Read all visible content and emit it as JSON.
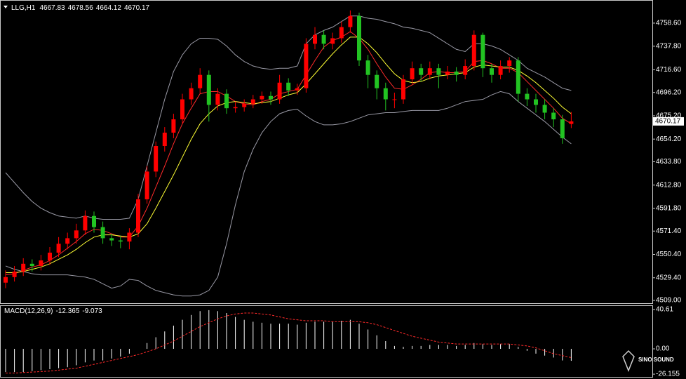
{
  "chart_data": [
    {
      "type": "candlestick",
      "symbol": "LLG,H1",
      "header_ohlc": [
        4667.83,
        4678.56,
        4664.12,
        4670.17
      ],
      "up_color": "#ff0000",
      "down_color": "#22c322",
      "open": [
        4525,
        4530,
        4535,
        4542,
        4540,
        4545,
        4552,
        4560,
        4565,
        4572,
        4585,
        4575,
        4565,
        4563,
        4562,
        4570,
        4600,
        4625,
        4648,
        4660,
        4672,
        4690,
        4700,
        4712,
        4685,
        4695,
        4682,
        4683,
        4686,
        4690,
        4693,
        4690,
        4705,
        4698,
        4700,
        4740,
        4748,
        4740,
        4745,
        4755,
        4765,
        4725,
        4712,
        4700,
        4690,
        4690,
        4708,
        4718,
        4712,
        4718,
        4712,
        4715,
        4712,
        4720,
        4748,
        4718,
        4712,
        4720,
        4725,
        4695,
        4690,
        4685,
        4678,
        4672,
        4667.83
      ],
      "high": [
        4536,
        4540,
        4547,
        4546,
        4550,
        4557,
        4566,
        4570,
        4578,
        4590,
        4589,
        4580,
        4569,
        4567,
        4574,
        4605,
        4630,
        4652,
        4665,
        4677,
        4695,
        4705,
        4718,
        4716,
        4700,
        4699,
        4688,
        4690,
        4694,
        4697,
        4697,
        4712,
        4709,
        4704,
        4745,
        4755,
        4752,
        4750,
        4760,
        4770,
        4768,
        4730,
        4716,
        4705,
        4696,
        4712,
        4724,
        4722,
        4724,
        4722,
        4720,
        4719,
        4726,
        4752,
        4750,
        4722,
        4725,
        4728,
        4728,
        4700,
        4695,
        4690,
        4682,
        4676,
        4678.56
      ],
      "low": [
        4520,
        4526,
        4531,
        4535,
        4536,
        4541,
        4548,
        4555,
        4560,
        4568,
        4570,
        4560,
        4558,
        4556,
        4555,
        4566,
        4596,
        4620,
        4643,
        4655,
        4668,
        4685,
        4695,
        4670,
        4680,
        4677,
        4678,
        4679,
        4682,
        4686,
        4685,
        4686,
        4693,
        4694,
        4696,
        4735,
        4735,
        4735,
        4741,
        4750,
        4720,
        4700,
        4690,
        4680,
        4682,
        4686,
        4704,
        4706,
        4708,
        4700,
        4708,
        4706,
        4708,
        4716,
        4710,
        4705,
        4708,
        4714,
        4688,
        4684,
        4678,
        4672,
        4665,
        4650,
        4664.12
      ],
      "close": [
        4530,
        4535,
        4542,
        4540,
        4545,
        4552,
        4560,
        4565,
        4572,
        4585,
        4575,
        4565,
        4563,
        4562,
        4570,
        4600,
        4625,
        4648,
        4660,
        4672,
        4690,
        4700,
        4712,
        4685,
        4695,
        4682,
        4683,
        4686,
        4690,
        4693,
        4690,
        4705,
        4698,
        4700,
        4740,
        4748,
        4740,
        4745,
        4755,
        4765,
        4725,
        4712,
        4700,
        4690,
        4690,
        4708,
        4718,
        4712,
        4718,
        4712,
        4715,
        4712,
        4720,
        4748,
        4718,
        4712,
        4720,
        4725,
        4695,
        4690,
        4685,
        4678,
        4672,
        4655,
        4670.17
      ],
      "lines": [
        {
          "color": "#9a9aa6",
          "values": [
            4624,
            4615,
            4606,
            4598,
            4592,
            4588,
            4585,
            4584,
            4583,
            4585,
            4583,
            4582,
            4582,
            4582,
            4583,
            4600,
            4630,
            4660,
            4690,
            4715,
            4730,
            4740,
            4745,
            4745,
            4744,
            4738,
            4730,
            4724,
            4720,
            4718,
            4717,
            4718,
            4718,
            4720,
            4740,
            4748,
            4752,
            4755,
            4760,
            4765,
            4765,
            4763,
            4762,
            4760,
            4758,
            4755,
            4754,
            4752,
            4750,
            4745,
            4740,
            4735,
            4733,
            4740,
            4740,
            4738,
            4735,
            4730,
            4725,
            4718,
            4714,
            4710,
            4705,
            4700,
            4698
          ]
        },
        {
          "color": "#9a9aa6",
          "values": [
            4540,
            4537,
            4535,
            4533,
            4532,
            4532,
            4532,
            4532,
            4531,
            4530,
            4528,
            4524,
            4520,
            4522,
            4528,
            4527,
            4522,
            4518,
            4516,
            4514,
            4513,
            4513,
            4514,
            4518,
            4530,
            4560,
            4595,
            4625,
            4645,
            4660,
            4670,
            4677,
            4680,
            4681,
            4675,
            4670,
            4667,
            4667,
            4668,
            4670,
            4673,
            4676,
            4677,
            4678,
            4678,
            4679,
            4680,
            4680,
            4680,
            4680,
            4682,
            4685,
            4688,
            4689,
            4690,
            4694,
            4697,
            4695,
            4688,
            4682,
            4676,
            4670,
            4663,
            4656,
            4650
          ]
        },
        {
          "color": "#ff2a2a",
          "values": [
            4532,
            4533,
            4536,
            4539,
            4541,
            4545,
            4550,
            4556,
            4562,
            4569,
            4573,
            4572,
            4569,
            4566,
            4566,
            4576,
            4592,
            4611,
            4630,
            4650,
            4668,
            4682,
            4695,
            4697,
            4697,
            4693,
            4688,
            4686,
            4685,
            4688,
            4690,
            4695,
            4697,
            4699,
            4712,
            4725,
            4737,
            4743,
            4746,
            4751,
            4745,
            4735,
            4722,
            4710,
            4700,
            4699,
            4703,
            4708,
            4714,
            4715,
            4714,
            4714,
            4715,
            4724,
            4725,
            4722,
            4718,
            4718,
            4714,
            4706,
            4698,
            4690,
            4682,
            4673,
            4668
          ]
        },
        {
          "color": "#ffff33",
          "values": [
            4534,
            4534,
            4535,
            4537,
            4539,
            4542,
            4546,
            4550,
            4555,
            4561,
            4566,
            4568,
            4568,
            4567,
            4566,
            4569,
            4578,
            4592,
            4607,
            4622,
            4638,
            4654,
            4668,
            4677,
            4684,
            4687,
            4688,
            4687,
            4686,
            4687,
            4688,
            4691,
            4694,
            4696,
            4704,
            4713,
            4722,
            4731,
            4739,
            4746,
            4746,
            4740,
            4732,
            4722,
            4713,
            4707,
            4705,
            4706,
            4709,
            4711,
            4712,
            4713,
            4714,
            4719,
            4721,
            4720,
            4719,
            4719,
            4716,
            4711,
            4705,
            4698,
            4691,
            4683,
            4677
          ]
        }
      ],
      "ylim": [
        4506.5,
        4779.4
      ],
      "yticks": [
        {
          "value": 4758.6,
          "label": "4758.60"
        },
        {
          "value": 4737.8,
          "label": "4737.80"
        },
        {
          "value": 4716.6,
          "label": "4716.60"
        },
        {
          "value": 4696.2,
          "label": "4696.20"
        },
        {
          "value": 4675.2,
          "label": "4675.20"
        },
        {
          "value": 4654.2,
          "label": "4654.20"
        },
        {
          "value": 4633.8,
          "label": "4633.80"
        },
        {
          "value": 4612.8,
          "label": "4612.80"
        },
        {
          "value": 4591.8,
          "label": "4591.80"
        },
        {
          "value": 4571.4,
          "label": "4571.40"
        },
        {
          "value": 4550.4,
          "label": "4550.40"
        },
        {
          "value": 4529.4,
          "label": "4529.40"
        },
        {
          "value": 4509,
          "label": "4509.00"
        }
      ]
    },
    {
      "type": "macd",
      "title": "MACD(12,26,9)",
      "title_values": [
        -12.365,
        -9.073
      ],
      "color": "#ffffff",
      "values": [
        -24,
        -24,
        -24,
        -23,
        -22,
        -21,
        -20,
        -19,
        -17,
        -14,
        -12,
        -12,
        -10,
        -8,
        -5,
        0,
        6,
        12,
        18,
        24,
        30,
        35,
        39,
        40,
        39,
        37,
        33,
        30,
        28,
        27,
        26,
        26,
        26,
        25,
        27,
        28,
        28,
        28,
        29,
        30,
        26,
        20,
        14,
        8,
        3,
        2,
        3,
        3,
        4,
        4,
        4,
        3,
        4,
        6,
        5,
        4,
        5,
        5,
        2,
        -2,
        -5,
        -7,
        -9,
        -12,
        -12.365
      ],
      "signal": {
        "color": "#ff2a2a",
        "values": [
          -25,
          -25,
          -24.5,
          -24,
          -23.5,
          -23,
          -22,
          -21,
          -20,
          -18,
          -16,
          -14,
          -12,
          -10,
          -8,
          -6,
          -3,
          0,
          4,
          8,
          13,
          18,
          23,
          27,
          31,
          34,
          36,
          37,
          37,
          36,
          35,
          33,
          31,
          30,
          29,
          29,
          29,
          28,
          28,
          28,
          28,
          27,
          25,
          22,
          19,
          16,
          13,
          11,
          9,
          7,
          6,
          5,
          5,
          5,
          5,
          5,
          5,
          5,
          4,
          3,
          1,
          -2,
          -5,
          -7,
          -9.073
        ]
      },
      "ylim": [
        -29,
        45
      ],
      "yticks": [
        40.61,
        {
          "value": 0,
          "label": "0.00"
        },
        {
          "value": -26.155,
          "label": "-26.155"
        }
      ]
    }
  ],
  "watermark": "SINO SOUND"
}
